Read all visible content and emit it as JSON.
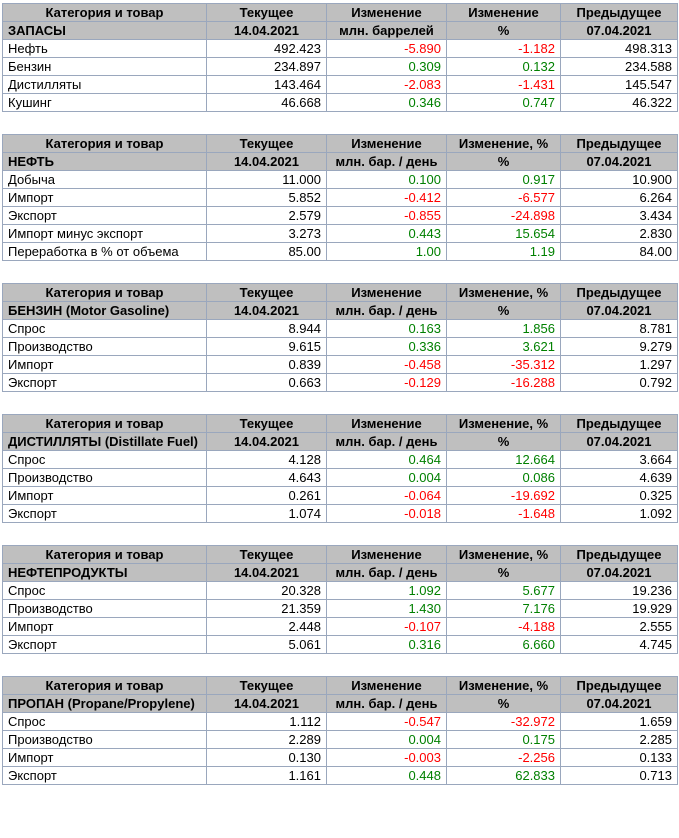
{
  "colors": {
    "header_bg": "#bfbfbf",
    "border": "#9aa7bd",
    "positive": "#008000",
    "negative": "#ff0000",
    "text": "#000000",
    "background": "#ffffff"
  },
  "chart_data": {
    "type": "table",
    "title": "",
    "tables": [
      {
        "key": "zapasy",
        "header": [
          "Категория и товар",
          "Текущее",
          "Изменение",
          "Изменение",
          "Предыдущее"
        ],
        "subheader": [
          "ЗАПАСЫ",
          "14.04.2021",
          "млн. баррелей",
          "%",
          "07.04.2021"
        ],
        "rows": [
          [
            "Нефть",
            "492.423",
            "-5.890",
            "-1.182",
            "498.313"
          ],
          [
            "Бензин",
            "234.897",
            "0.309",
            "0.132",
            "234.588"
          ],
          [
            "Дистилляты",
            "143.464",
            "-2.083",
            "-1.431",
            "145.547"
          ],
          [
            "Кушинг",
            "46.668",
            "0.346",
            "0.747",
            "46.322"
          ]
        ]
      },
      {
        "key": "neft",
        "header": [
          "Категория и товар",
          "Текущее",
          "Изменение",
          "Изменение, %",
          "Предыдущее"
        ],
        "subheader": [
          "НЕФТЬ",
          "14.04.2021",
          "млн. бар. / день",
          "%",
          "07.04.2021"
        ],
        "rows": [
          [
            "Добыча",
            "11.000",
            "0.100",
            "0.917",
            "10.900"
          ],
          [
            "Импорт",
            "5.852",
            "-0.412",
            "-6.577",
            "6.264"
          ],
          [
            "Экспорт",
            "2.579",
            "-0.855",
            "-24.898",
            "3.434"
          ],
          [
            "Импорт минус экспорт",
            "3.273",
            "0.443",
            "15.654",
            "2.830"
          ],
          [
            "Переработка в % от объема",
            "85.00",
            "1.00",
            "1.19",
            "84.00"
          ]
        ]
      },
      {
        "key": "benzin",
        "header": [
          "Категория и товар",
          "Текущее",
          "Изменение",
          "Изменение, %",
          "Предыдущее"
        ],
        "subheader": [
          "БЕНЗИН (Motor Gasoline)",
          "14.04.2021",
          "млн. бар. / день",
          "%",
          "07.04.2021"
        ],
        "rows": [
          [
            "Спрос",
            "8.944",
            "0.163",
            "1.856",
            "8.781"
          ],
          [
            "Производство",
            "9.615",
            "0.336",
            "3.621",
            "9.279"
          ],
          [
            "Импорт",
            "0.839",
            "-0.458",
            "-35.312",
            "1.297"
          ],
          [
            "Экспорт",
            "0.663",
            "-0.129",
            "-16.288",
            "0.792"
          ]
        ]
      },
      {
        "key": "distillyaty",
        "header": [
          "Категория и товар",
          "Текущее",
          "Изменение",
          "Изменение, %",
          "Предыдущее"
        ],
        "subheader": [
          "ДИСТИЛЛЯТЫ (Distillate Fuel)",
          "14.04.2021",
          "млн. бар. / день",
          "%",
          "07.04.2021"
        ],
        "rows": [
          [
            "Спрос",
            "4.128",
            "0.464",
            "12.664",
            "3.664"
          ],
          [
            "Производство",
            "4.643",
            "0.004",
            "0.086",
            "4.639"
          ],
          [
            "Импорт",
            "0.261",
            "-0.064",
            "-19.692",
            "0.325"
          ],
          [
            "Экспорт",
            "1.074",
            "-0.018",
            "-1.648",
            "1.092"
          ]
        ]
      },
      {
        "key": "nefteprodukty",
        "header": [
          "Категория и товар",
          "Текущее",
          "Изменение",
          "Изменение, %",
          "Предыдущее"
        ],
        "subheader": [
          "НЕФТЕПРОДУКТЫ",
          "14.04.2021",
          "млн. бар. / день",
          "%",
          "07.04.2021"
        ],
        "rows": [
          [
            "Спрос",
            "20.328",
            "1.092",
            "5.677",
            "19.236"
          ],
          [
            "Производство",
            "21.359",
            "1.430",
            "7.176",
            "19.929"
          ],
          [
            "Импорт",
            "2.448",
            "-0.107",
            "-4.188",
            "2.555"
          ],
          [
            "Экспорт",
            "5.061",
            "0.316",
            "6.660",
            "4.745"
          ]
        ]
      },
      {
        "key": "propan",
        "header": [
          "Категория и товар",
          "Текущее",
          "Изменение",
          "Изменение, %",
          "Предыдущее"
        ],
        "subheader": [
          "ПРОПАН (Propane/Propylene)",
          "14.04.2021",
          "млн. бар. / день",
          "%",
          "07.04.2021"
        ],
        "rows": [
          [
            "Спрос",
            "1.112",
            "-0.547",
            "-32.972",
            "1.659"
          ],
          [
            "Производство",
            "2.289",
            "0.004",
            "0.175",
            "2.285"
          ],
          [
            "Импорт",
            "0.130",
            "-0.003",
            "-2.256",
            "0.133"
          ],
          [
            "Экспорт",
            "1.161",
            "0.448",
            "62.833",
            "0.713"
          ]
        ]
      }
    ]
  }
}
